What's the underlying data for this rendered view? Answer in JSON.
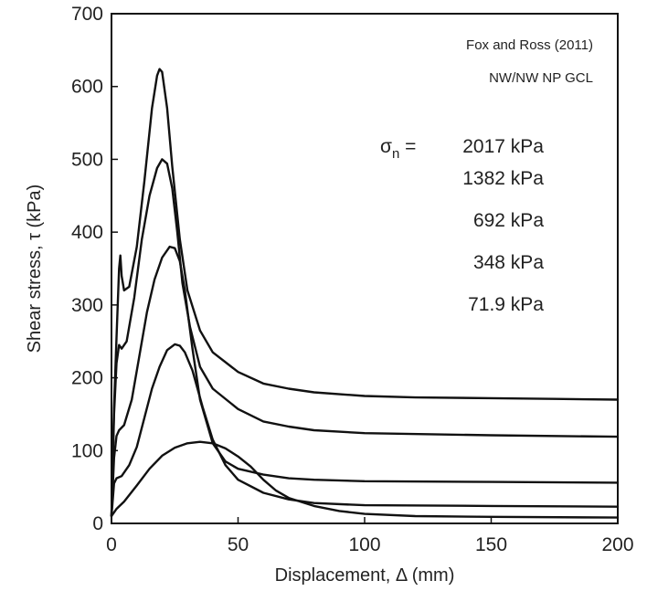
{
  "chart_data": {
    "type": "line",
    "title": "",
    "xlabel": "Displacement, Δ  (mm)",
    "ylabel": "Shear stress, τ  (kPa)",
    "xlim": [
      0,
      200
    ],
    "ylim": [
      0,
      700
    ],
    "xticks": [
      0,
      50,
      100,
      150,
      200
    ],
    "yticks": [
      0,
      100,
      200,
      300,
      400,
      500,
      600,
      700
    ],
    "grid": false,
    "annotations": {
      "source": "Fox and Ross (2011)",
      "material": "NW/NW NP GCL",
      "sigma_prefix": "σ",
      "sigma_subscript": "n",
      "sigma_equals": " = "
    },
    "stress_labels": [
      "2017 kPa",
      "1382 kPa",
      "692 kPa",
      "348 kPa",
      "71.9 kPa"
    ],
    "series": [
      {
        "name": "2017 kPa",
        "points": [
          [
            0,
            10
          ],
          [
            1,
            160
          ],
          [
            2,
            255
          ],
          [
            3,
            350
          ],
          [
            3.5,
            368
          ],
          [
            4,
            340
          ],
          [
            5,
            320
          ],
          [
            7,
            325
          ],
          [
            10,
            380
          ],
          [
            13,
            470
          ],
          [
            16,
            570
          ],
          [
            18,
            615
          ],
          [
            19,
            624
          ],
          [
            20,
            620
          ],
          [
            22,
            570
          ],
          [
            24,
            490
          ],
          [
            27,
            390
          ],
          [
            30,
            320
          ],
          [
            35,
            265
          ],
          [
            40,
            235
          ],
          [
            50,
            208
          ],
          [
            60,
            192
          ],
          [
            70,
            185
          ],
          [
            80,
            180
          ],
          [
            100,
            175
          ],
          [
            120,
            173
          ],
          [
            150,
            172
          ],
          [
            175,
            171
          ],
          [
            200,
            170
          ]
        ]
      },
      {
        "name": "1382 kPa",
        "points": [
          [
            0,
            10
          ],
          [
            1,
            150
          ],
          [
            2,
            220
          ],
          [
            3,
            245
          ],
          [
            4,
            240
          ],
          [
            6,
            250
          ],
          [
            9,
            310
          ],
          [
            12,
            390
          ],
          [
            15,
            450
          ],
          [
            18,
            488
          ],
          [
            20,
            500
          ],
          [
            22,
            494
          ],
          [
            24,
            460
          ],
          [
            26,
            400
          ],
          [
            28,
            330
          ],
          [
            31,
            270
          ],
          [
            35,
            215
          ],
          [
            40,
            185
          ],
          [
            50,
            157
          ],
          [
            60,
            140
          ],
          [
            70,
            133
          ],
          [
            80,
            128
          ],
          [
            100,
            124
          ],
          [
            150,
            121
          ],
          [
            200,
            119
          ]
        ]
      },
      {
        "name": "692 kPa",
        "points": [
          [
            0,
            10
          ],
          [
            1,
            90
          ],
          [
            2,
            120
          ],
          [
            3,
            128
          ],
          [
            5,
            135
          ],
          [
            8,
            170
          ],
          [
            11,
            230
          ],
          [
            14,
            290
          ],
          [
            17,
            335
          ],
          [
            20,
            365
          ],
          [
            23,
            380
          ],
          [
            25,
            378
          ],
          [
            27,
            360
          ],
          [
            29,
            320
          ],
          [
            32,
            240
          ],
          [
            35,
            170
          ],
          [
            40,
            110
          ],
          [
            45,
            85
          ],
          [
            50,
            75
          ],
          [
            60,
            67
          ],
          [
            70,
            62
          ],
          [
            80,
            60
          ],
          [
            100,
            58
          ],
          [
            150,
            57
          ],
          [
            200,
            56
          ]
        ]
      },
      {
        "name": "348 kPa",
        "points": [
          [
            0,
            10
          ],
          [
            1,
            55
          ],
          [
            2,
            62
          ],
          [
            4,
            65
          ],
          [
            7,
            80
          ],
          [
            10,
            105
          ],
          [
            13,
            145
          ],
          [
            16,
            185
          ],
          [
            19,
            215
          ],
          [
            22,
            238
          ],
          [
            25,
            246
          ],
          [
            27,
            244
          ],
          [
            29,
            235
          ],
          [
            32,
            210
          ],
          [
            36,
            160
          ],
          [
            40,
            115
          ],
          [
            45,
            80
          ],
          [
            50,
            60
          ],
          [
            60,
            42
          ],
          [
            70,
            33
          ],
          [
            80,
            28
          ],
          [
            100,
            25
          ],
          [
            150,
            24
          ],
          [
            200,
            23
          ]
        ]
      },
      {
        "name": "71.9 kPa",
        "points": [
          [
            0,
            10
          ],
          [
            2,
            20
          ],
          [
            5,
            30
          ],
          [
            10,
            52
          ],
          [
            15,
            75
          ],
          [
            20,
            93
          ],
          [
            25,
            104
          ],
          [
            30,
            110
          ],
          [
            35,
            112
          ],
          [
            40,
            110
          ],
          [
            45,
            103
          ],
          [
            50,
            92
          ],
          [
            55,
            78
          ],
          [
            60,
            60
          ],
          [
            65,
            45
          ],
          [
            70,
            35
          ],
          [
            80,
            24
          ],
          [
            90,
            17
          ],
          [
            100,
            13
          ],
          [
            120,
            10
          ],
          [
            150,
            9
          ],
          [
            200,
            8
          ]
        ]
      }
    ]
  }
}
